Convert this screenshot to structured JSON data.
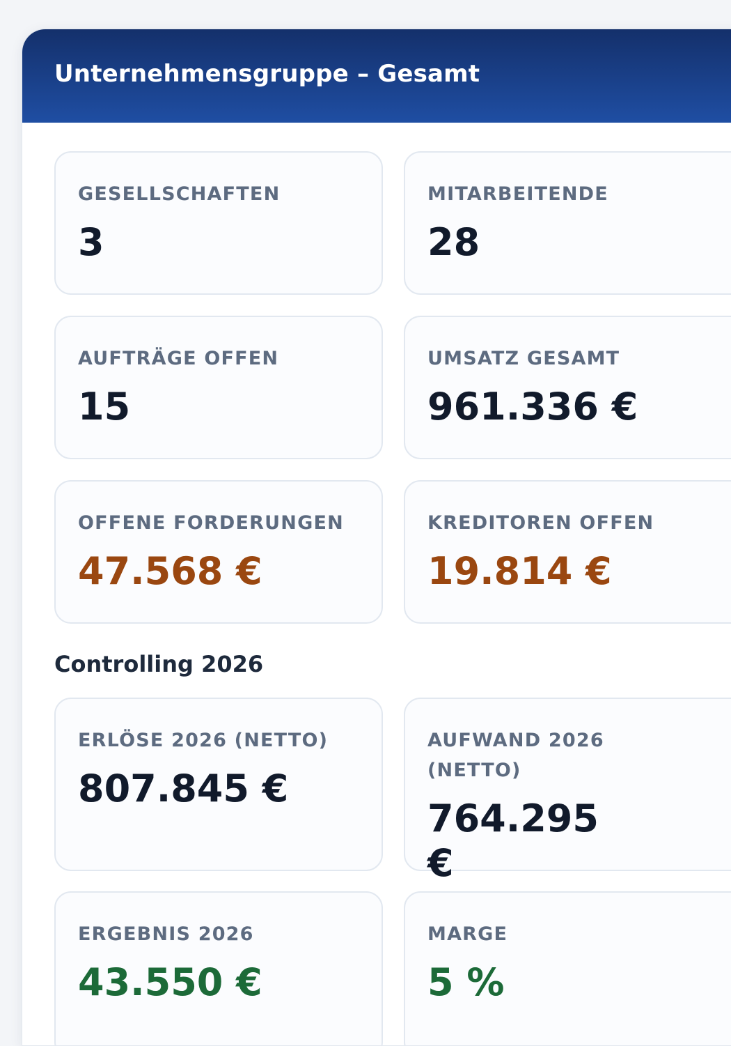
{
  "header": {
    "title": "Unternehmensgruppe – Gesamt"
  },
  "kpis": [
    {
      "label": "GESELLSCHAFTEN",
      "value": "3"
    },
    {
      "label": "MITARBEITENDE",
      "value": "28"
    },
    {
      "label": "AUFTRÄGE OFFEN",
      "value": "15"
    },
    {
      "label": "UMSATZ GESAMT",
      "value": "961.336 €"
    },
    {
      "label": "OFFENE FORDERUNGEN",
      "value": "47.568 €"
    },
    {
      "label": "KREDITOREN OFFEN",
      "value": "19.814 €"
    }
  ],
  "controlling": {
    "title": "Controlling 2026",
    "kpis": [
      {
        "label": "ERLÖSE 2026 (NETTO)",
        "value": "807.845 €"
      },
      {
        "label": "AUFWAND 2026 (NETTO)",
        "value": "764.295 €"
      },
      {
        "label": "ERGEBNIS 2026",
        "value": "43.550 €"
      },
      {
        "label": "MARGE",
        "value": "5 %"
      }
    ]
  },
  "colors": {
    "header_gradient_top": "#14306b",
    "header_gradient_bottom": "#1f4ea3",
    "warning_value": "#9a4710",
    "positive_value": "#1c6a38"
  }
}
